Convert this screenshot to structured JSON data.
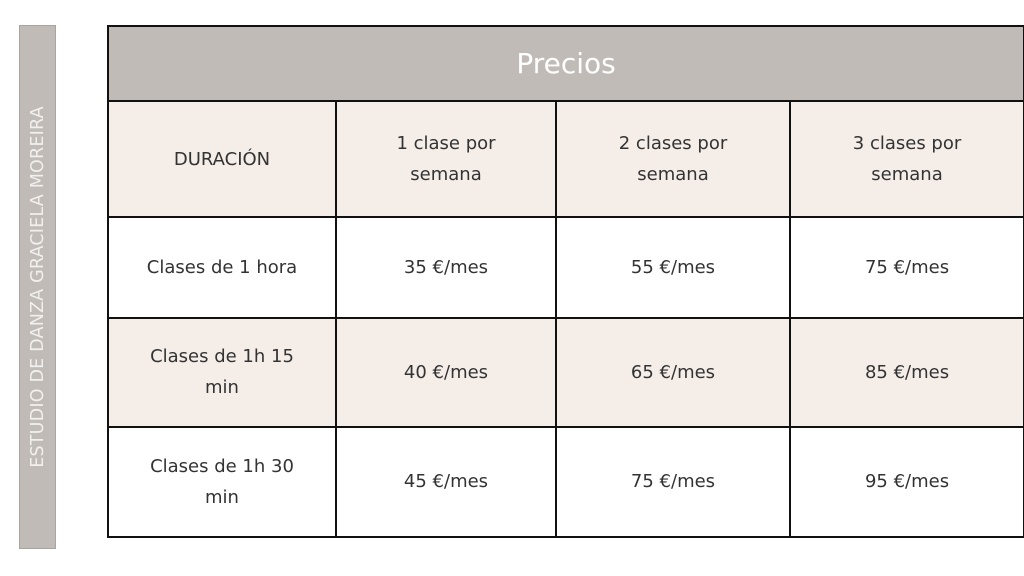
{
  "sidebar": {
    "text": "ESTUDIO DE DANZA GRACIELA MOREIRA"
  },
  "table": {
    "title": "Precios",
    "headers": [
      "DURACIÓN",
      "1 clase por semana",
      "2 clases por semana",
      "3 clases por semana"
    ],
    "rows": [
      [
        "Clases de 1 hora",
        "35 €/mes",
        "55 €/mes",
        "75 €/mes"
      ],
      [
        "Clases de 1h 15 min",
        "40 €/mes",
        "65 €/mes",
        "85 €/mes"
      ],
      [
        "Clases de 1h 30 min",
        "45 €/mes",
        "75 €/mes",
        "95 €/mes"
      ]
    ]
  },
  "colors": {
    "header_bg": "#c0bbb7",
    "alt_row_bg": "#f5ede8"
  }
}
